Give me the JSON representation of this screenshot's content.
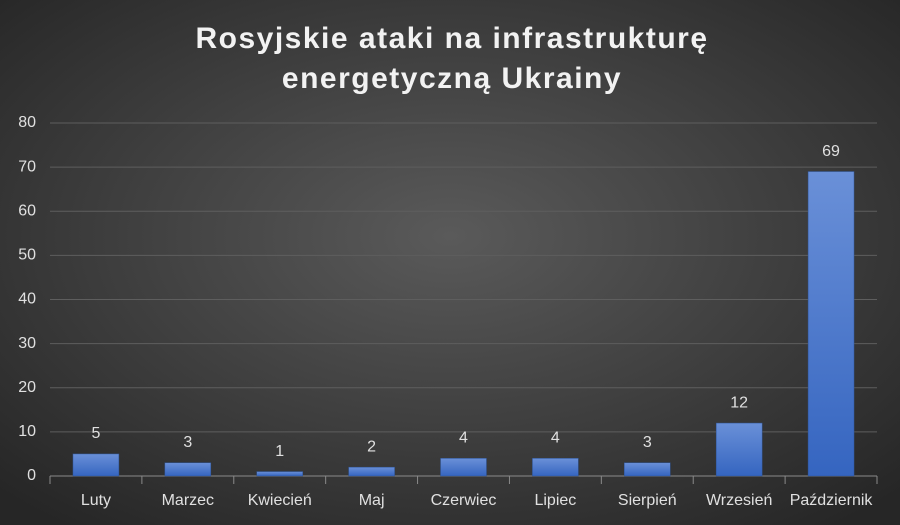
{
  "chart_data": {
    "type": "bar",
    "title": [
      "Rosyjskie ataki na infrastrukturę",
      "energetyczną Ukrainy"
    ],
    "categories": [
      "Luty",
      "Marzec",
      "Kwiecień",
      "Maj",
      "Czerwiec",
      "Lipiec",
      "Sierpień",
      "Wrzesień",
      "Październik"
    ],
    "values": [
      5,
      3,
      1,
      2,
      4,
      4,
      3,
      12,
      69
    ],
    "color": "#4472c4",
    "ylim": [
      0,
      80
    ],
    "yticks": [
      0,
      10,
      20,
      30,
      40,
      50,
      60,
      70,
      80
    ],
    "grid": true
  }
}
